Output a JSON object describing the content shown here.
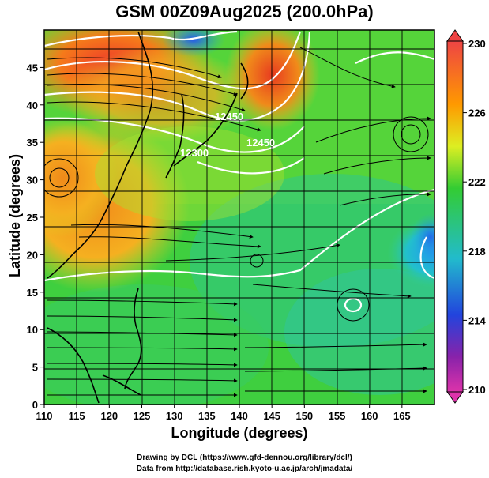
{
  "title": "GSM 00Z09Aug2025 (200.0hPa)",
  "map": {
    "x_axis": {
      "label": "Longitude (degrees)",
      "range": [
        110,
        170
      ],
      "ticks": [
        110,
        115,
        120,
        125,
        130,
        135,
        140,
        145,
        150,
        155,
        160,
        165
      ]
    },
    "y_axis": {
      "label": "Latitude  (degrees)",
      "range": [
        0,
        50
      ],
      "ticks": [
        0,
        5,
        10,
        15,
        20,
        25,
        30,
        35,
        40,
        45
      ]
    },
    "contour_labels": [
      "12450",
      "12300",
      "12450"
    ],
    "colorbar": {
      "ticks": [
        230,
        226,
        222,
        218,
        214,
        210
      ],
      "colors": {
        "top": "#ee4444",
        "orange": "#ff9900",
        "yellow": "#ddee22",
        "green": "#33cc33",
        "cyan": "#22bbcc",
        "blue": "#2244dd",
        "purple": "#8822aa",
        "bottom": "#dd33aa"
      }
    }
  },
  "credits": {
    "line1": "Drawing by DCL (https://www.gfd-dennou.org/library/dcl/)",
    "line2": "Data from http://database.rish.kyoto-u.ac.jp/arch/jmadata/"
  }
}
